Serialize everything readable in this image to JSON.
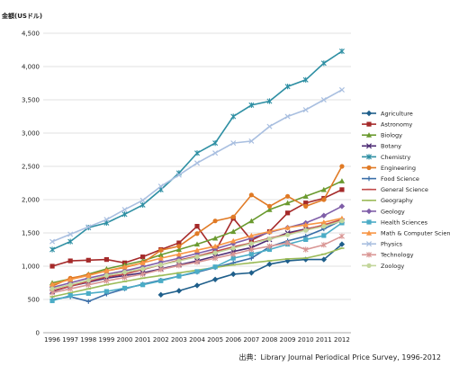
{
  "chart_data": {
    "type": "line",
    "ylabel": "金額(USドル)",
    "source": "出典：Library Journal Periodical Price Survey, 1996-2012",
    "ylim": [
      0,
      4500
    ],
    "yticks": [
      "0",
      "500",
      "1,000",
      "1,500",
      "2,000",
      "2,500",
      "3,000",
      "3,500",
      "4,000",
      "4,500"
    ],
    "ytick_values": [
      0,
      500,
      1000,
      1500,
      2000,
      2500,
      3000,
      3500,
      4000,
      4500
    ],
    "grid": true,
    "legend_position": "right",
    "x": [
      "1996",
      "1997",
      "1998",
      "1999",
      "2000",
      "2001",
      "2002",
      "2003",
      "2004",
      "2005",
      "2006",
      "2007",
      "2008",
      "2009",
      "2010",
      "2011",
      "2012"
    ],
    "series": [
      {
        "name": "Agriculture",
        "color": "#1f5f8b",
        "marker": "diamond",
        "values": [
          null,
          null,
          null,
          null,
          null,
          null,
          570,
          630,
          710,
          800,
          880,
          900,
          1030,
          1080,
          1100,
          1100,
          1330
        ]
      },
      {
        "name": "Astronomy",
        "color": "#a52a2a",
        "marker": "square",
        "values": [
          1000,
          1080,
          1090,
          1100,
          1050,
          1140,
          1250,
          1350,
          1600,
          1220,
          1720,
          1390,
          1520,
          1800,
          1950,
          2020,
          2150
        ]
      },
      {
        "name": "Biology",
        "color": "#6a9a2f",
        "marker": "triangle",
        "values": [
          750,
          810,
          880,
          960,
          1020,
          1080,
          1170,
          1250,
          1330,
          1420,
          1520,
          1680,
          1850,
          1950,
          2050,
          2150,
          2280
        ]
      },
      {
        "name": "Botany",
        "color": "#4b2a73",
        "marker": "x",
        "values": [
          620,
          700,
          760,
          820,
          860,
          900,
          960,
          1020,
          1080,
          1150,
          1220,
          1280,
          1400,
          1500,
          1560,
          1610,
          1680
        ]
      },
      {
        "name": "Chemistry",
        "color": "#2e8fa3",
        "marker": "star",
        "values": [
          1250,
          1370,
          1580,
          1650,
          1780,
          1920,
          2150,
          2400,
          2700,
          2850,
          3250,
          3420,
          3480,
          3700,
          3800,
          4050,
          4230
        ]
      },
      {
        "name": "Engineering",
        "color": "#e07a25",
        "marker": "circle",
        "values": [
          700,
          820,
          870,
          930,
          980,
          1050,
          1240,
          1300,
          1490,
          1680,
          1740,
          2070,
          1900,
          2050,
          1900,
          2000,
          2500
        ]
      },
      {
        "name": "Food Science",
        "color": "#3a6ea8",
        "marker": "plus",
        "values": [
          500,
          540,
          470,
          580,
          660,
          730,
          790,
          850,
          910,
          980,
          1050,
          1120,
          1290,
          1380,
          1450,
          1560,
          1690
        ]
      },
      {
        "name": "General Science",
        "color": "#c24a4a",
        "marker": "dash",
        "values": [
          630,
          700,
          770,
          840,
          880,
          950,
          1020,
          1090,
          1150,
          1220,
          1290,
          1350,
          1420,
          1480,
          1550,
          1620,
          1700
        ]
      },
      {
        "name": "Geography",
        "color": "#9bbb59",
        "marker": "dash",
        "values": [
          540,
          600,
          660,
          720,
          770,
          820,
          860,
          900,
          940,
          980,
          1020,
          1050,
          1080,
          1110,
          1120,
          1180,
          1270
        ]
      },
      {
        "name": "Geology",
        "color": "#7f5ea8",
        "marker": "diamond",
        "values": [
          680,
          750,
          820,
          880,
          930,
          990,
          1060,
          1120,
          1190,
          1260,
          1340,
          1420,
          1510,
          1580,
          1650,
          1760,
          1900
        ]
      },
      {
        "name": "Health Sciences",
        "color": "#4bacc6",
        "marker": "square",
        "values": [
          480,
          560,
          590,
          620,
          670,
          720,
          780,
          850,
          920,
          990,
          1120,
          1180,
          1250,
          1330,
          1400,
          1460,
          1650
        ]
      },
      {
        "name": "Math & Computer Science",
        "color": "#f79646",
        "marker": "triangle",
        "values": [
          730,
          800,
          860,
          930,
          990,
          1050,
          1120,
          1180,
          1240,
          1300,
          1380,
          1460,
          1520,
          1580,
          1620,
          1660,
          1720
        ]
      },
      {
        "name": "Physics",
        "color": "#a9bfe0",
        "marker": "x",
        "values": [
          1370,
          1480,
          1590,
          1700,
          1850,
          1990,
          2200,
          2370,
          2550,
          2700,
          2850,
          2880,
          3100,
          3250,
          3350,
          3500,
          3650
        ]
      },
      {
        "name": "Technology",
        "color": "#d99694",
        "marker": "star",
        "values": [
          600,
          660,
          720,
          780,
          830,
          880,
          950,
          1010,
          1060,
          1120,
          1180,
          1250,
          1300,
          1350,
          1250,
          1320,
          1450
        ]
      },
      {
        "name": "Zoology",
        "color": "#c3d69b",
        "marker": "circle",
        "values": [
          660,
          720,
          790,
          860,
          910,
          960,
          1020,
          1080,
          1140,
          1200,
          1270,
          1340,
          1410,
          1470,
          1540,
          1600,
          1680
        ]
      }
    ]
  }
}
